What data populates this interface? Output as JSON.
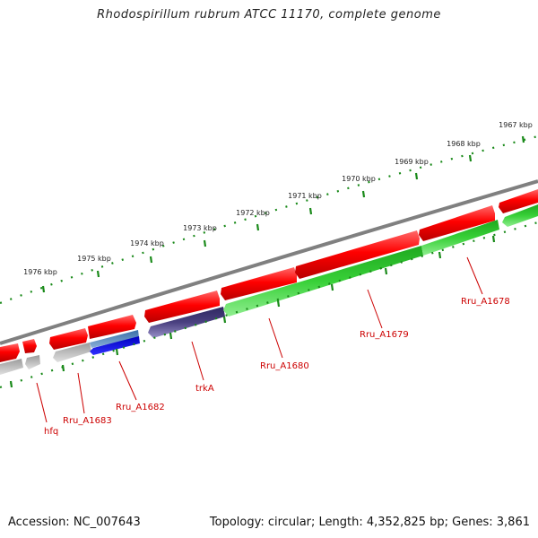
{
  "title": "Rhodospirillum rubrum ATCC 11170, complete genome",
  "footer": {
    "accession": "Accession: NC_007643",
    "summary": "Topology: circular; Length: 4,352,825 bp; Genes: 3,861"
  },
  "colors": {
    "forward": "#ff0000",
    "reverse_green": "#33cc33",
    "reverse_purple": "#4a4080",
    "reverse_blue": "#1a1aee",
    "ruler": "#1a8a1a",
    "backbone": "#808080",
    "gene_label": "#cc0000",
    "pseudo": "#bbbbbb"
  },
  "ruler_labels": [
    "1967 kbp",
    "1968 kbp",
    "1969 kbp",
    "1970 kbp",
    "1971 kbp",
    "1972 kbp",
    "1973 kbp",
    "1974 kbp",
    "1975 kbp",
    "1976 kbp"
  ],
  "gene_labels": [
    "hfq",
    "Rru_A1683",
    "Rru_A1682",
    "trkA",
    "Rru_A1680",
    "Rru_A1679",
    "Rru_A1678"
  ]
}
